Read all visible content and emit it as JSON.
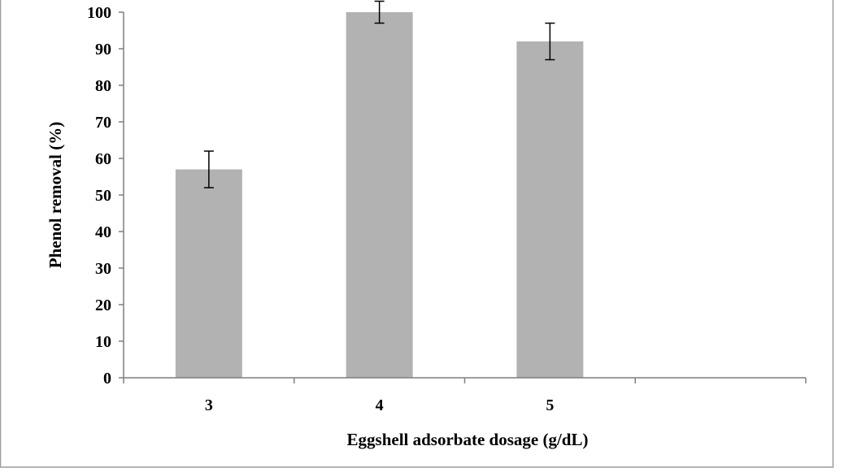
{
  "chart_data": {
    "type": "bar",
    "title": "",
    "xlabel": "Eggshell adsorbate dosage (g/dL)",
    "ylabel": "Phenol removal (%)",
    "categories": [
      "3",
      "4",
      "5",
      ""
    ],
    "values": [
      57,
      100,
      92,
      null
    ],
    "error": [
      5,
      3,
      5,
      null
    ],
    "ylim": [
      0,
      100
    ],
    "yticks": [
      0,
      10,
      20,
      30,
      40,
      50,
      60,
      70,
      80,
      90,
      100
    ],
    "grid": false,
    "legend": "none",
    "colors": {
      "bar": "#b2b2b2",
      "axis": "#7f7f7f",
      "frame": "#9a9a9a",
      "error_bar": "#000000"
    }
  }
}
